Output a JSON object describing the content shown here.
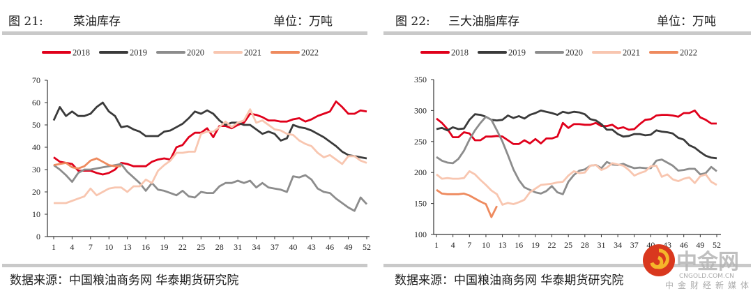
{
  "panels": [
    {
      "fig_label": "图 21:",
      "title": "菜油库存",
      "unit": "单位：万吨",
      "source": "数据来源：中国粮油商务网 华泰期货研究院"
    },
    {
      "fig_label": "图 22:",
      "title": "三大油脂库存",
      "unit": "单位：万吨",
      "source": "数据来源：中国粮油商务网 华泰期货研究院"
    }
  ],
  "watermark": {
    "name": "中金网",
    "domain": "CNGOLD.COM.CN",
    "tagline": "中金财经新媒体"
  },
  "colors": {
    "2018": "#e0001b",
    "2019": "#3a3a3a",
    "2020": "#8c8c8c",
    "2021": "#f8c6b0",
    "2022": "#ee8a5e"
  },
  "chart_data": [
    {
      "type": "line",
      "ylim": [
        0,
        70
      ],
      "yticks": [
        0,
        10,
        20,
        30,
        40,
        50,
        60,
        70
      ],
      "xticks": [
        1,
        4,
        7,
        10,
        13,
        16,
        19,
        22,
        25,
        28,
        31,
        34,
        37,
        40,
        43,
        46,
        49,
        52
      ],
      "xlim": [
        1,
        52
      ],
      "grid": false,
      "legend": "top",
      "series": [
        {
          "name": "2018",
          "values": [
            35.5,
            33.5,
            33,
            32.5,
            29.5,
            29.5,
            29.5,
            28.5,
            27.8,
            28.5,
            30,
            33,
            32.5,
            31.5,
            31.5,
            31.5,
            33.5,
            34.5,
            35,
            34.5,
            40,
            41,
            44.5,
            46.5,
            46.5,
            48.5,
            44.5,
            49.5,
            49.5,
            48.5,
            50,
            51,
            55,
            54.5,
            53.5,
            52,
            52,
            51.5,
            51.5,
            52.5,
            53,
            51.5,
            52.5,
            54,
            55,
            56,
            60.5,
            58,
            55,
            55,
            56.5,
            56
          ]
        },
        {
          "name": "2019",
          "values": [
            52,
            58,
            54,
            56,
            54,
            54,
            55,
            58,
            60,
            56,
            54,
            49,
            49.5,
            48,
            47,
            45,
            45,
            45,
            47,
            47.5,
            49,
            50.5,
            53,
            56,
            55,
            56.5,
            55,
            52,
            50,
            51,
            51,
            50,
            50,
            48,
            46,
            47,
            46,
            43,
            44,
            50,
            49,
            48.5,
            47.5,
            46,
            44.5,
            42.5,
            40.5,
            38,
            36.5,
            36,
            35.5,
            35
          ]
        },
        {
          "name": "2020",
          "values": [
            32,
            30,
            27.5,
            24.5,
            28.5,
            30,
            30,
            30.5,
            31,
            31.5,
            32,
            32.5,
            29,
            26.5,
            24,
            20.5,
            24,
            21,
            20.5,
            19.5,
            18.5,
            20.5,
            18,
            17.5,
            20,
            19.5,
            19.5,
            22.5,
            24,
            24,
            25,
            24,
            25,
            22,
            24,
            22,
            21.5,
            21,
            20,
            27,
            26.5,
            27.5,
            25.5,
            21.5,
            20,
            19.5,
            17,
            15,
            13,
            11.5,
            17.5,
            14.5
          ]
        },
        {
          "name": "2021",
          "values": [
            15,
            15,
            15,
            16,
            17,
            18,
            21.5,
            18.5,
            20,
            21.5,
            22,
            22,
            20,
            22.5,
            22.5,
            25.5,
            24,
            29.5,
            32,
            34,
            37.5,
            37.5,
            38,
            38,
            46,
            47,
            47,
            49,
            51.5,
            49,
            51,
            52,
            57,
            51,
            52,
            50,
            48,
            47.5,
            46,
            45.5,
            43,
            41.5,
            40.5,
            37.5,
            35.5,
            36.5,
            34.5,
            32.5,
            36,
            36,
            34,
            33
          ]
        },
        {
          "name": "2022",
          "values": [
            32,
            32.5,
            33,
            31,
            30.5,
            31.5,
            34,
            35,
            33.5,
            32,
            31.5,
            31.5
          ]
        }
      ]
    },
    {
      "type": "line",
      "ylim": [
        100,
        350
      ],
      "yticks": [
        100,
        150,
        200,
        250,
        300,
        350
      ],
      "xticks": [
        1,
        4,
        7,
        10,
        13,
        16,
        19,
        22,
        25,
        28,
        31,
        34,
        37,
        40,
        43,
        46,
        49,
        52
      ],
      "xlim": [
        1,
        52
      ],
      "grid": false,
      "legend": "top",
      "series": [
        {
          "name": "2018",
          "values": [
            287,
            280,
            270,
            257,
            257,
            265,
            263,
            252,
            252,
            258,
            258,
            259,
            258,
            252,
            246,
            246,
            252,
            247,
            254,
            247,
            255,
            255,
            258,
            280,
            272,
            278,
            278,
            277,
            277,
            280,
            275,
            275,
            277,
            271,
            273,
            269,
            270,
            278,
            285,
            286,
            292,
            293,
            293,
            292,
            290,
            296,
            296,
            300,
            289,
            285,
            279,
            279
          ]
        },
        {
          "name": "2019",
          "values": [
            270,
            272,
            268,
            273,
            270,
            271,
            285,
            294,
            293,
            290,
            285,
            284,
            285,
            292,
            288,
            291,
            287,
            293,
            296,
            300,
            298,
            296,
            293,
            298,
            296,
            298,
            297,
            294,
            286,
            284,
            278,
            269,
            269,
            262,
            258,
            259,
            262,
            262,
            260,
            261,
            268,
            266,
            265,
            263,
            256,
            253,
            244,
            240,
            233,
            227,
            224,
            223
          ]
        },
        {
          "name": "2020",
          "values": [
            225,
            219,
            216,
            215,
            222,
            235,
            253,
            268,
            280,
            290,
            285,
            268,
            250,
            228,
            205,
            188,
            176,
            172,
            168,
            166,
            170,
            178,
            168,
            165,
            185,
            196,
            203,
            205,
            211,
            212,
            207,
            217,
            213,
            212,
            214,
            210,
            207,
            208,
            207,
            207,
            219,
            221,
            216,
            211,
            203,
            204,
            206,
            206,
            197,
            199,
            209,
            202
          ]
        },
        {
          "name": "2021",
          "values": [
            197,
            190,
            191,
            190,
            190,
            191,
            202,
            197,
            188,
            180,
            171,
            165,
            148,
            151,
            149,
            152,
            156,
            168,
            174,
            180,
            181,
            182,
            184,
            185,
            195,
            202,
            199,
            200,
            211,
            212,
            204,
            208,
            215,
            213,
            211,
            204,
            195,
            199,
            202,
            210,
            211,
            193,
            197,
            189,
            186,
            190,
            192,
            183,
            194,
            197,
            185,
            180
          ]
        },
        {
          "name": "2022",
          "values": [
            172,
            166,
            165,
            165,
            165,
            166,
            163,
            158,
            153,
            149,
            128,
            146
          ]
        }
      ]
    }
  ]
}
